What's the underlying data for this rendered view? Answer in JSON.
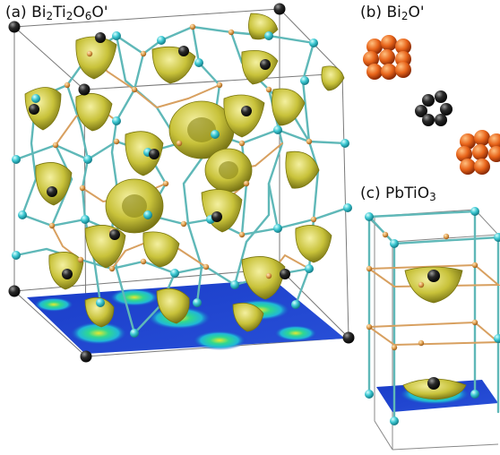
{
  "panels": {
    "a": {
      "tag": "(a)",
      "formula": "Bi2Ti2O6O'"
    },
    "b": {
      "tag": "(b)",
      "formula": "Bi2O'"
    },
    "c": {
      "tag": "(c)",
      "formula": "PbTiO3"
    }
  },
  "colors": {
    "lobe": "#c8c23a",
    "lobe_dark": "#8a8618",
    "ti_atom": "#3cc8d2",
    "o_atom": "#e0a050",
    "bi_atom": "#1a1a1a",
    "cluster": "#e8641a",
    "slice_base": "#1a3cc8",
    "slice_mid": "#20c8c8",
    "slice_hot": "#d8e020",
    "box": "#555555"
  }
}
